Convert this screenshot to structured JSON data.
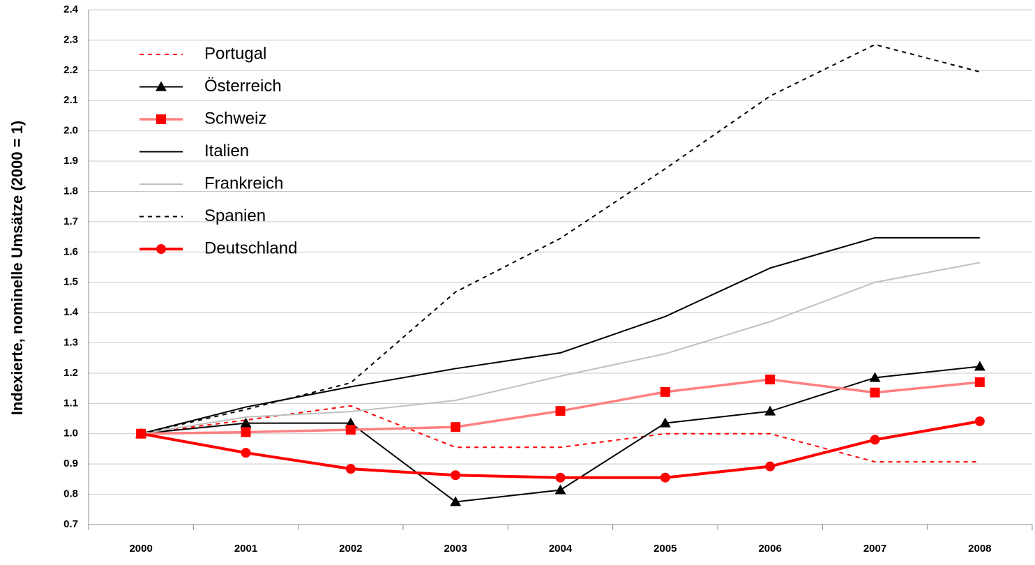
{
  "chart_data": {
    "type": "line",
    "y_label": "Indexierte, nominelle Umsätze  (2000 = 1)",
    "categories": [
      "2000",
      "2001",
      "2002",
      "2003",
      "2004",
      "2005",
      "2006",
      "2007",
      "2008"
    ],
    "series": [
      {
        "name": "Portugal",
        "color": "#ff0000",
        "dash": "dashed",
        "marker": "none",
        "values": [
          1.0,
          1.045,
          1.092,
          0.955,
          0.955,
          1.0,
          1.0,
          0.907,
          0.907
        ]
      },
      {
        "name": "Österreich",
        "color": "#000000",
        "dash": "solid",
        "marker": "triangle",
        "values": [
          1.0,
          1.035,
          1.035,
          0.775,
          0.814,
          1.035,
          1.074,
          1.185,
          1.222
        ]
      },
      {
        "name": "Schweiz",
        "color": "#ff8080",
        "marker_color": "#ff0000",
        "dash": "solid",
        "marker": "square",
        "values": [
          1.0,
          1.005,
          1.013,
          1.022,
          1.075,
          1.138,
          1.179,
          1.136,
          1.17
        ]
      },
      {
        "name": "Italien",
        "color": "#000000",
        "dash": "solid",
        "marker": "none",
        "values": [
          1.0,
          1.088,
          1.155,
          1.215,
          1.267,
          1.387,
          1.547,
          1.647,
          1.647
        ]
      },
      {
        "name": "Frankreich",
        "color": "#c0c0c0",
        "dash": "solid",
        "marker": "none",
        "values": [
          1.0,
          1.055,
          1.073,
          1.11,
          1.19,
          1.264,
          1.37,
          1.5,
          1.565
        ]
      },
      {
        "name": "Spanien",
        "color": "#000000",
        "dash": "dashed",
        "marker": "none",
        "values": [
          1.0,
          1.08,
          1.168,
          1.468,
          1.645,
          1.875,
          2.115,
          2.285,
          2.195
        ]
      },
      {
        "name": "Deutschland",
        "color": "#ff0000",
        "dash": "solid",
        "marker": "circle",
        "values": [
          1.0,
          0.937,
          0.884,
          0.863,
          0.855,
          0.855,
          0.892,
          0.98,
          1.041
        ]
      }
    ],
    "ylim": [
      0.7,
      2.4
    ],
    "yticks": [
      {
        "value": 0.7,
        "label": "0.7"
      },
      {
        "value": 0.8,
        "label": "0.8"
      },
      {
        "value": 0.9,
        "label": "0.9"
      },
      {
        "value": 1.0,
        "label": "1.0"
      },
      {
        "value": 1.1,
        "label": "1.1"
      },
      {
        "value": 1.2,
        "label": "1.2"
      },
      {
        "value": 1.3,
        "label": "1.3"
      },
      {
        "value": 1.4,
        "label": "1.4"
      },
      {
        "value": 1.5,
        "label": "1.5"
      },
      {
        "value": 1.6,
        "label": "1.6"
      },
      {
        "value": 1.7,
        "label": "1.7"
      },
      {
        "value": 1.8,
        "label": "1.8"
      },
      {
        "value": 1.9,
        "label": "1.9"
      },
      {
        "value": 2.0,
        "label": "2.0"
      },
      {
        "value": 2.1,
        "label": "2.1"
      },
      {
        "value": 2.2,
        "label": "2.2"
      },
      {
        "value": 2.3,
        "label": "2.3"
      },
      {
        "value": 2.4,
        "label": "2.4"
      }
    ],
    "grid": true,
    "legend": "upper left"
  }
}
